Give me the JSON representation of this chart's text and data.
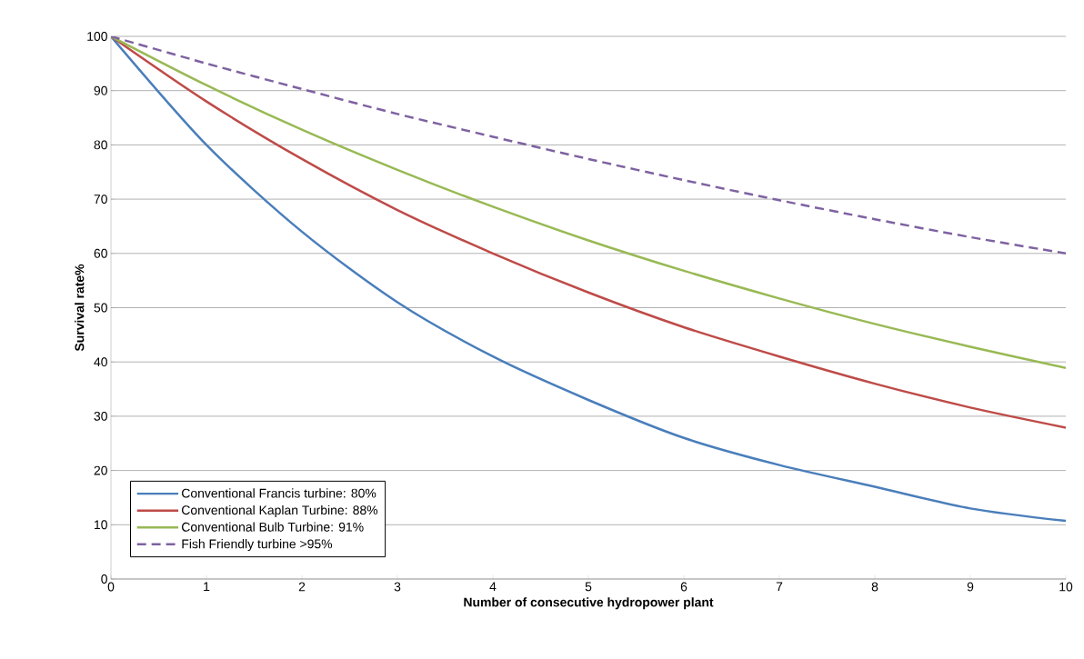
{
  "chart_data": {
    "type": "line",
    "xlabel": "Number of consecutive hydropower plant",
    "ylabel": "Survival rate%",
    "x": [
      0,
      1,
      2,
      3,
      4,
      5,
      6,
      7,
      8,
      9,
      10
    ],
    "series": [
      {
        "name": "Conventional Francis turbine: 80%",
        "color": "#4a7ebb",
        "line_style": "solid",
        "values": [
          100,
          80,
          64,
          51,
          41,
          33,
          26,
          21,
          17,
          13,
          10.7
        ]
      },
      {
        "name": "Conventional Kaplan Turbine: 88%",
        "color": "#be4b48",
        "line_style": "solid",
        "values": [
          100,
          88,
          77.4,
          68,
          60,
          52.8,
          46.4,
          41,
          36,
          31.6,
          27.9
        ]
      },
      {
        "name": "Conventional Bulb Turbine: 91%",
        "color": "#98b954",
        "line_style": "solid",
        "values": [
          100,
          91,
          82.8,
          75.4,
          68.6,
          62.4,
          56.8,
          51.7,
          47,
          42.8,
          38.9
        ]
      },
      {
        "name": "Fish Friendly turbine >95%",
        "color": "#7e62a1",
        "line_style": "dashed",
        "values": [
          100,
          95,
          90.3,
          85.7,
          81.5,
          77.4,
          73.5,
          69.8,
          66.3,
          63,
          60
        ]
      }
    ],
    "xlim": [
      0,
      10
    ],
    "ylim": [
      0,
      100
    ],
    "xticks": [
      0,
      1,
      2,
      3,
      4,
      5,
      6,
      7,
      8,
      9,
      10
    ],
    "yticks": [
      0,
      10,
      20,
      30,
      40,
      50,
      60,
      70,
      80,
      90,
      100
    ],
    "grid": "y",
    "legend": "bottom left",
    "marker": "none"
  }
}
